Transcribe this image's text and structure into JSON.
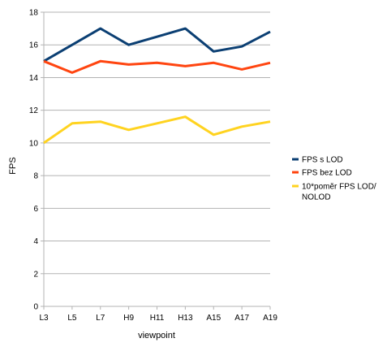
{
  "chart_data": {
    "type": "line",
    "categories": [
      "L3",
      "L5",
      "L7",
      "H9",
      "H11",
      "H13",
      "A15",
      "A17",
      "A19"
    ],
    "series": [
      {
        "name": "FPS s LOD",
        "color": "#0b3f73",
        "values": [
          15.0,
          16.0,
          17.0,
          16.0,
          16.5,
          17.0,
          15.6,
          15.9,
          16.8
        ]
      },
      {
        "name": "FPS bez LOD",
        "color": "#ff4510",
        "values": [
          15.0,
          14.3,
          15.0,
          14.8,
          14.9,
          14.7,
          14.9,
          14.5,
          14.9
        ]
      },
      {
        "name": "10*poměr FPS LOD/ NOLOD",
        "color": "#ffd320",
        "values": [
          10.0,
          11.2,
          11.3,
          10.8,
          11.2,
          11.6,
          10.5,
          11.0,
          11.3
        ]
      }
    ],
    "xlabel": "viewpoint",
    "ylabel": "FPS",
    "ylim": [
      0,
      18
    ],
    "yticks": [
      0,
      2,
      4,
      6,
      8,
      10,
      12,
      14,
      16,
      18
    ],
    "grid": true,
    "legend": "right"
  }
}
